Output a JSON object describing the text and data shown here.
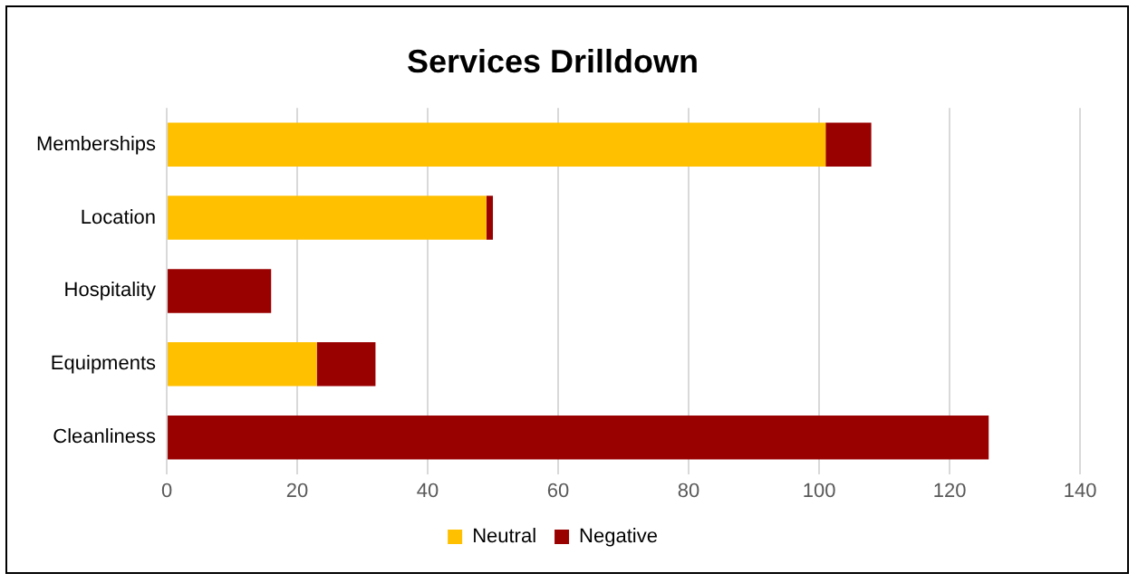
{
  "chart_data": {
    "type": "bar",
    "orientation": "horizontal",
    "stacked": true,
    "title": "Services Drilldown",
    "categories": [
      "Memberships",
      "Location",
      "Hospitality",
      "Equipments",
      "Cleanliness"
    ],
    "series": [
      {
        "name": "Neutral",
        "color": "#ffc000",
        "values": [
          101,
          49,
          0,
          23,
          0
        ]
      },
      {
        "name": "Negative",
        "color": "#990000",
        "values": [
          7,
          1,
          16,
          9,
          126
        ]
      }
    ],
    "xlim": [
      0,
      140
    ],
    "xticks": [
      0,
      20,
      40,
      60,
      80,
      100,
      120,
      140
    ],
    "grid": "x",
    "legend": "bottom"
  }
}
